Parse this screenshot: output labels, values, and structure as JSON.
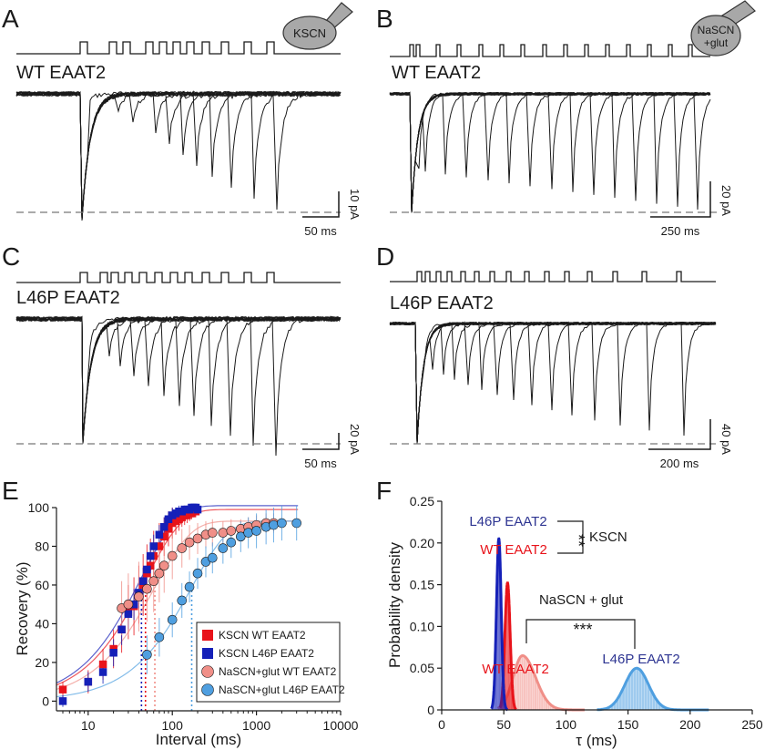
{
  "panels": {
    "A": {
      "letter": "A",
      "title": "WT EAAT2",
      "drug": "KSCN",
      "scale_y": "10 pA",
      "scale_x": "50 ms"
    },
    "B": {
      "letter": "B",
      "title": "WT EAAT2",
      "drug_line1": "NaSCN",
      "drug_line2": "+glut",
      "scale_y": "20 pA",
      "scale_x": "250 ms"
    },
    "C": {
      "letter": "C",
      "title": "L46P EAAT2",
      "scale_y": "20 pA",
      "scale_x": "50 ms"
    },
    "D": {
      "letter": "D",
      "title": "L46P EAAT2",
      "scale_y": "40 pA",
      "scale_x": "200 ms"
    },
    "E": {
      "letter": "E"
    },
    "F": {
      "letter": "F"
    }
  },
  "colors": {
    "trace": "#1a1a1a",
    "red": "#e8131a",
    "blue": "#1520b8",
    "pink": "#f08f88",
    "lightblue": "#4f9fe0",
    "darkblue_text": "#2e3592"
  },
  "chart_data": [
    {
      "id": "E",
      "type": "scatter",
      "xscale": "log",
      "xlabel": "Interval (ms)",
      "ylabel": "Recovery (%)",
      "xlim": [
        4.2,
        10000
      ],
      "ylim": [
        -5,
        100
      ],
      "xticks": [
        10,
        100,
        1000,
        10000
      ],
      "xtick_labels": [
        "10",
        "100",
        "1000",
        "10000"
      ],
      "yticks": [
        0,
        20,
        40,
        60,
        80,
        100
      ],
      "ytick_labels": [
        "0",
        "20",
        "40",
        "60",
        "80",
        "100"
      ],
      "legend_position": "bottom-right",
      "series": [
        {
          "name": "KSCN WT EAAT2",
          "color": "#e8131a",
          "marker": "square",
          "tau": 48,
          "x": [
            5,
            10,
            15,
            20,
            25,
            30,
            35,
            40,
            45,
            50,
            55,
            60,
            70,
            80,
            90,
            100,
            110,
            120,
            130,
            140,
            150,
            160,
            170,
            180,
            190
          ],
          "y": [
            6,
            10,
            19,
            27,
            37,
            46,
            49,
            55,
            60,
            66,
            70,
            75,
            80,
            85,
            89,
            92,
            93,
            94,
            95,
            96,
            96,
            97,
            97,
            98,
            98
          ],
          "err": [
            4,
            6,
            8,
            10,
            12,
            14,
            15,
            15,
            16,
            15,
            14,
            13,
            12,
            10,
            9,
            8,
            7,
            6,
            5,
            5,
            4,
            4,
            3,
            3,
            3
          ]
        },
        {
          "name": "KSCN L46P EAAT2",
          "color": "#1520b8",
          "marker": "square",
          "tau": 43,
          "x": [
            5,
            10,
            15,
            20,
            25,
            30,
            35,
            40,
            45,
            50,
            55,
            60,
            70,
            80,
            90,
            100,
            110,
            120,
            130,
            140,
            150,
            160,
            170,
            180,
            190,
            200
          ],
          "y": [
            0,
            10,
            15,
            25,
            37,
            45,
            50,
            56,
            62,
            68,
            75,
            80,
            86,
            90,
            94,
            96,
            97,
            98,
            98,
            99,
            99,
            99,
            100,
            100,
            100,
            99
          ],
          "err": [
            3,
            5,
            6,
            7,
            8,
            8,
            8,
            8,
            7,
            7,
            6,
            6,
            5,
            5,
            4,
            4,
            3,
            3,
            3,
            2,
            2,
            2,
            2,
            2,
            2,
            2
          ]
        },
        {
          "name": "NaSCN+glut WT EAAT2",
          "color": "#f08f88",
          "marker": "circle",
          "tau": 62,
          "x": [
            25,
            30,
            40,
            50,
            60,
            70,
            80,
            100,
            130,
            160,
            200,
            250,
            300,
            400,
            500,
            650,
            800,
            1000,
            1300,
            1600
          ],
          "y": [
            48,
            50,
            54,
            58,
            62,
            66,
            70,
            75,
            79,
            82,
            84,
            86,
            87,
            87,
            88,
            89,
            90,
            91,
            92,
            92
          ],
          "err": [
            14,
            16,
            18,
            17,
            16,
            15,
            14,
            12,
            10,
            9,
            8,
            7,
            7,
            6,
            6,
            5,
            5,
            5,
            5,
            5
          ]
        },
        {
          "name": "NaSCN+glut L46P EAAT2",
          "color": "#4f9fe0",
          "marker": "circle",
          "tau": 170,
          "x": [
            50,
            70,
            100,
            130,
            160,
            200,
            250,
            300,
            400,
            500,
            650,
            800,
            1000,
            1300,
            1600,
            2000,
            3000
          ],
          "y": [
            24,
            33,
            42,
            52,
            59,
            66,
            72,
            74,
            79,
            82,
            85,
            87,
            88,
            90,
            91,
            92,
            92
          ],
          "err": [
            10,
            10,
            9,
            9,
            8,
            8,
            8,
            8,
            8,
            8,
            8,
            8,
            9,
            9,
            9,
            9,
            9
          ]
        }
      ]
    },
    {
      "id": "F",
      "type": "area",
      "xlabel": "τ (ms)",
      "ylabel": "Probability density",
      "xlim": [
        0,
        250
      ],
      "ylim": [
        0,
        0.25
      ],
      "xticks": [
        0,
        50,
        100,
        150,
        200,
        250
      ],
      "xtick_labels": [
        "0",
        "50",
        "100",
        "150",
        "200",
        "250"
      ],
      "yticks": [
        0,
        0.05,
        0.1,
        0.15,
        0.2,
        0.25
      ],
      "ytick_labels": [
        "0",
        "0.05",
        "0.10",
        "0.15",
        "0.20",
        "0.25"
      ],
      "series": [
        {
          "name": "L46P EAAT2",
          "group": "KSCN",
          "color": "#1520b8",
          "mean": 46,
          "sd": 1.9,
          "peak": 0.205,
          "range": [
            40,
            53
          ]
        },
        {
          "name": "WT EAAT2",
          "group": "KSCN",
          "color": "#e8131a",
          "mean": 53,
          "sd": 2.1,
          "peak": 0.152,
          "range": [
            47,
            60
          ]
        },
        {
          "name": "WT EAAT2",
          "group": "NaSCN + glut",
          "color": "#f08f88",
          "mean": 65,
          "sd": 7.5,
          "peak": 0.065,
          "range": [
            45,
            115
          ]
        },
        {
          "name": "L46P EAAT2",
          "group": "NaSCN + glut",
          "color": "#4f9fe0",
          "mean": 157,
          "sd": 9.5,
          "peak": 0.05,
          "range": [
            125,
            215
          ]
        }
      ],
      "annotations": {
        "label_l46p_kscn": "L46P EAAT2",
        "label_wt_kscn": "WT EAAT2",
        "sig_kscn": "**",
        "kscn": "KSCN",
        "nascn": "NaSCN + glut",
        "sig_nascn": "***",
        "label_wt_nascn": "WT EAAT2",
        "label_l46p_nascn": "L46P EAAT2"
      }
    }
  ]
}
